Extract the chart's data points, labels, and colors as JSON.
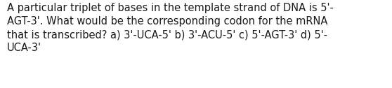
{
  "line1": "A particular triplet of bases in the template strand of DNA is 5'-",
  "line2": "AGT-3'. What would be the corresponding codon for the mRNA",
  "line3": "that is transcribed? a) 3'-UCA-5' b) 3'-ACU-5' c) 5'-AGT-3' d) 5'-",
  "line4": "UCA-3'",
  "background_color": "#ffffff",
  "text_color": "#1a1a1a",
  "font_size": 10.5,
  "fig_width": 5.58,
  "fig_height": 1.26,
  "dpi": 100
}
